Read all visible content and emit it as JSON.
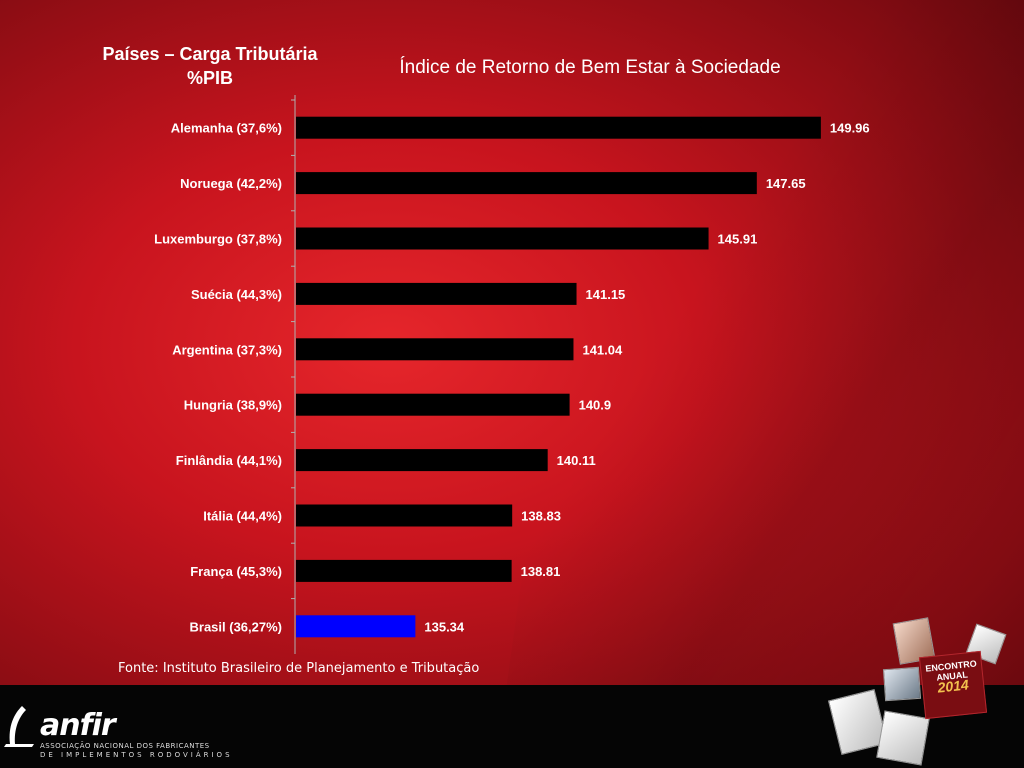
{
  "left_title": "Países – Carga Tributária %PIB",
  "chart_data": {
    "type": "bar",
    "orientation": "horizontal",
    "title": "Índice de Retorno de Bem Estar à Sociedade",
    "categories": [
      "Alemanha (37,6%)",
      "Noruega (42,2%)",
      "Luxemburgo (37,8%)",
      "Suécia (44,3%)",
      "Argentina (37,3%)",
      "Hungria (38,9%)",
      "Finlândia (44,1%)",
      "Itália (44,4%)",
      "França (45,3%)",
      "Brasil (36,27%)"
    ],
    "values": [
      149.96,
      147.65,
      145.91,
      141.15,
      141.04,
      140.9,
      140.11,
      138.83,
      138.81,
      135.34
    ],
    "value_labels": [
      "149.96",
      "147.65",
      "145.91",
      "141.15",
      "141.04",
      "140.9",
      "140.11",
      "138.83",
      "138.81",
      "135.34"
    ],
    "bar_colors": [
      "#000000",
      "#000000",
      "#000000",
      "#000000",
      "#000000",
      "#000000",
      "#000000",
      "#000000",
      "#000000",
      "#0000ff"
    ],
    "xlim": [
      131,
      150
    ],
    "xlabel": "",
    "ylabel": "",
    "grid": false,
    "legend": "none"
  },
  "source": "Fonte: Instituto Brasileiro de Planejamento e Tributação",
  "footer": {
    "logo_word": "anfir",
    "logo_line1": "ASSOCIAÇÃO NACIONAL DOS FABRICANTES",
    "logo_line2": "DE IMPLEMENTOS RODOVIÁRIOS",
    "badge_line1": "ENCONTRO",
    "badge_line2": "ANUAL",
    "badge_year": "2014"
  },
  "colors": {
    "background": "#d41c24",
    "footer": "#050505",
    "text": "#ffffff"
  }
}
